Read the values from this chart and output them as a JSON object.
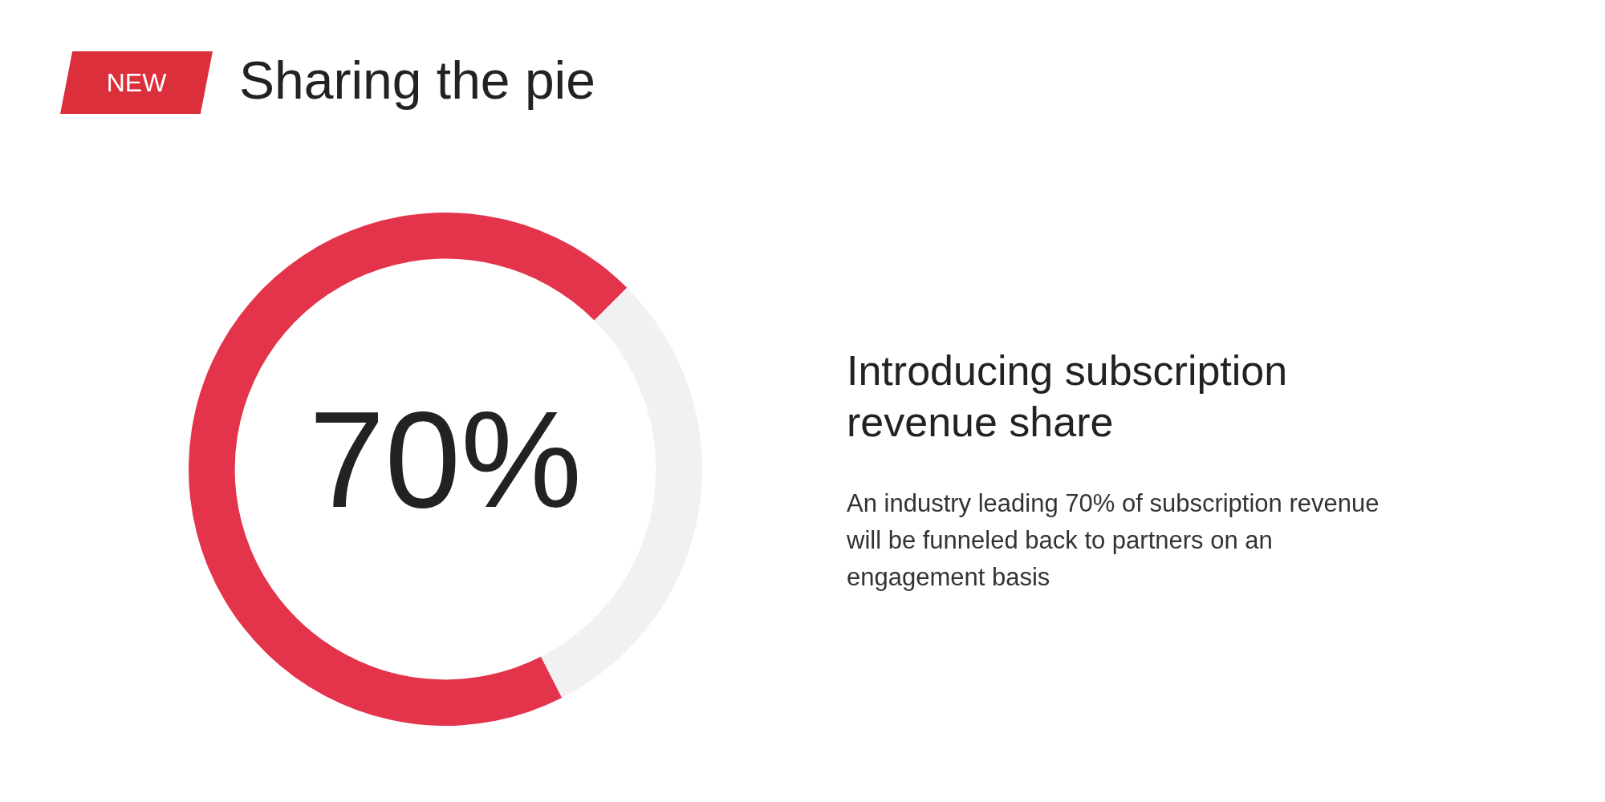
{
  "chart_data": {
    "type": "donut",
    "title": "Sharing the pie",
    "subtitle": "Introducing subscription revenue share",
    "categories": [
      null,
      null
    ],
    "values": [
      70,
      30
    ],
    "colors": [
      "#e4344c",
      "#f1f1f1"
    ],
    "value_labels": [
      "70%",
      null
    ],
    "annotations": [
      "NEW",
      "An industry leading 70% of subscription revenue will be funneled back to partners on an engagement basis"
    ]
  }
}
